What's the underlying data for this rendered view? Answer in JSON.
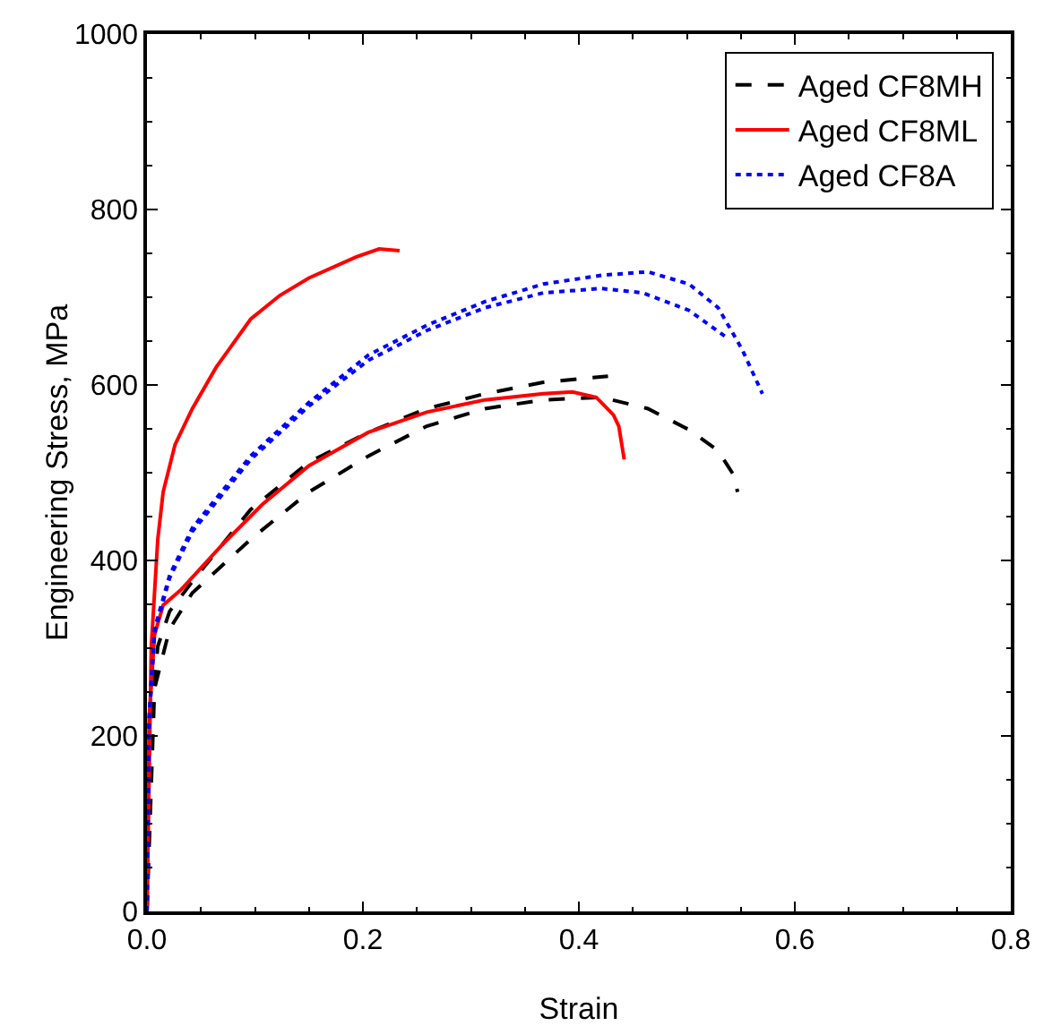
{
  "chart_data": {
    "type": "line",
    "xlabel": "Strain",
    "ylabel": "Engineering Stress, MPa",
    "xlim": [
      0,
      0.8
    ],
    "ylim": [
      0,
      1000
    ],
    "xticks": [
      {
        "value": 0,
        "label": "0.0"
      },
      {
        "value": 0.2,
        "label": "0.2"
      },
      {
        "value": 0.4,
        "label": "0.4"
      },
      {
        "value": 0.6,
        "label": "0.6"
      },
      {
        "value": 0.8,
        "label": "0.8"
      }
    ],
    "yticks": [
      0,
      200,
      400,
      600,
      800,
      1000
    ],
    "grid": false,
    "legend": "top right",
    "marker": "none",
    "series": [
      {
        "name": "Aged CF8MH",
        "color": "#000000",
        "line_style": "dashed",
        "x": [
          0,
          0.004,
          0.01,
          0.021,
          0.042,
          0.096,
          0.15,
          0.205,
          0.259,
          0.313,
          0.367,
          0.427
        ],
        "values": [
          0,
          220,
          302,
          342,
          376,
          458,
          512,
          546,
          573,
          590,
          603,
          610
        ]
      },
      {
        "color": "#000000",
        "line_style": "dashed",
        "x": [
          0,
          0.007,
          0.021,
          0.042,
          0.096,
          0.15,
          0.205,
          0.259,
          0.313,
          0.367,
          0.421,
          0.464,
          0.502,
          0.529,
          0.543,
          0.547
        ],
        "values": [
          0,
          254,
          322,
          363,
          424,
          478,
          519,
          553,
          573,
          583,
          586,
          573,
          549,
          525,
          498,
          478
        ]
      },
      {
        "name": "Aged CF8ML",
        "color": "#ff0000",
        "line_style": "solid",
        "x": [
          0,
          0.002,
          0.004,
          0.01,
          0.015,
          0.026,
          0.042,
          0.064,
          0.096,
          0.123,
          0.15,
          0.194,
          0.215,
          0.234
        ],
        "values": [
          0,
          153,
          302,
          424,
          478,
          532,
          573,
          620,
          675,
          702,
          722,
          746,
          755,
          753
        ]
      },
      {
        "color": "#ff0000",
        "line_style": "solid",
        "x": [
          0,
          0.002,
          0.007,
          0.015,
          0.031,
          0.069,
          0.107,
          0.15,
          0.205,
          0.259,
          0.313,
          0.367,
          0.394,
          0.416,
          0.432,
          0.437,
          0.442
        ],
        "values": [
          0,
          220,
          315,
          349,
          366,
          417,
          464,
          508,
          546,
          569,
          583,
          590,
          592,
          586,
          566,
          553,
          515
        ]
      },
      {
        "name": "Aged CF8A",
        "color": "#0000ff",
        "line_style": "dotted",
        "x": [
          0,
          0.002,
          0.007,
          0.021,
          0.042,
          0.069,
          0.096,
          0.15,
          0.205,
          0.259,
          0.313,
          0.367,
          0.421,
          0.464,
          0.502,
          0.529,
          0.551,
          0.57
        ],
        "values": [
          0,
          220,
          322,
          383,
          437,
          478,
          519,
          580,
          634,
          668,
          695,
          715,
          725,
          729,
          715,
          688,
          641,
          590
        ]
      },
      {
        "color": "#0000ff",
        "line_style": "dotted",
        "x": [
          0,
          0.002,
          0.007,
          0.021,
          0.042,
          0.069,
          0.096,
          0.15,
          0.205,
          0.259,
          0.313,
          0.367,
          0.421,
          0.459,
          0.502,
          0.537
        ],
        "values": [
          0,
          215,
          318,
          380,
          433,
          474,
          515,
          576,
          628,
          662,
          688,
          705,
          710,
          705,
          685,
          654
        ]
      }
    ]
  }
}
